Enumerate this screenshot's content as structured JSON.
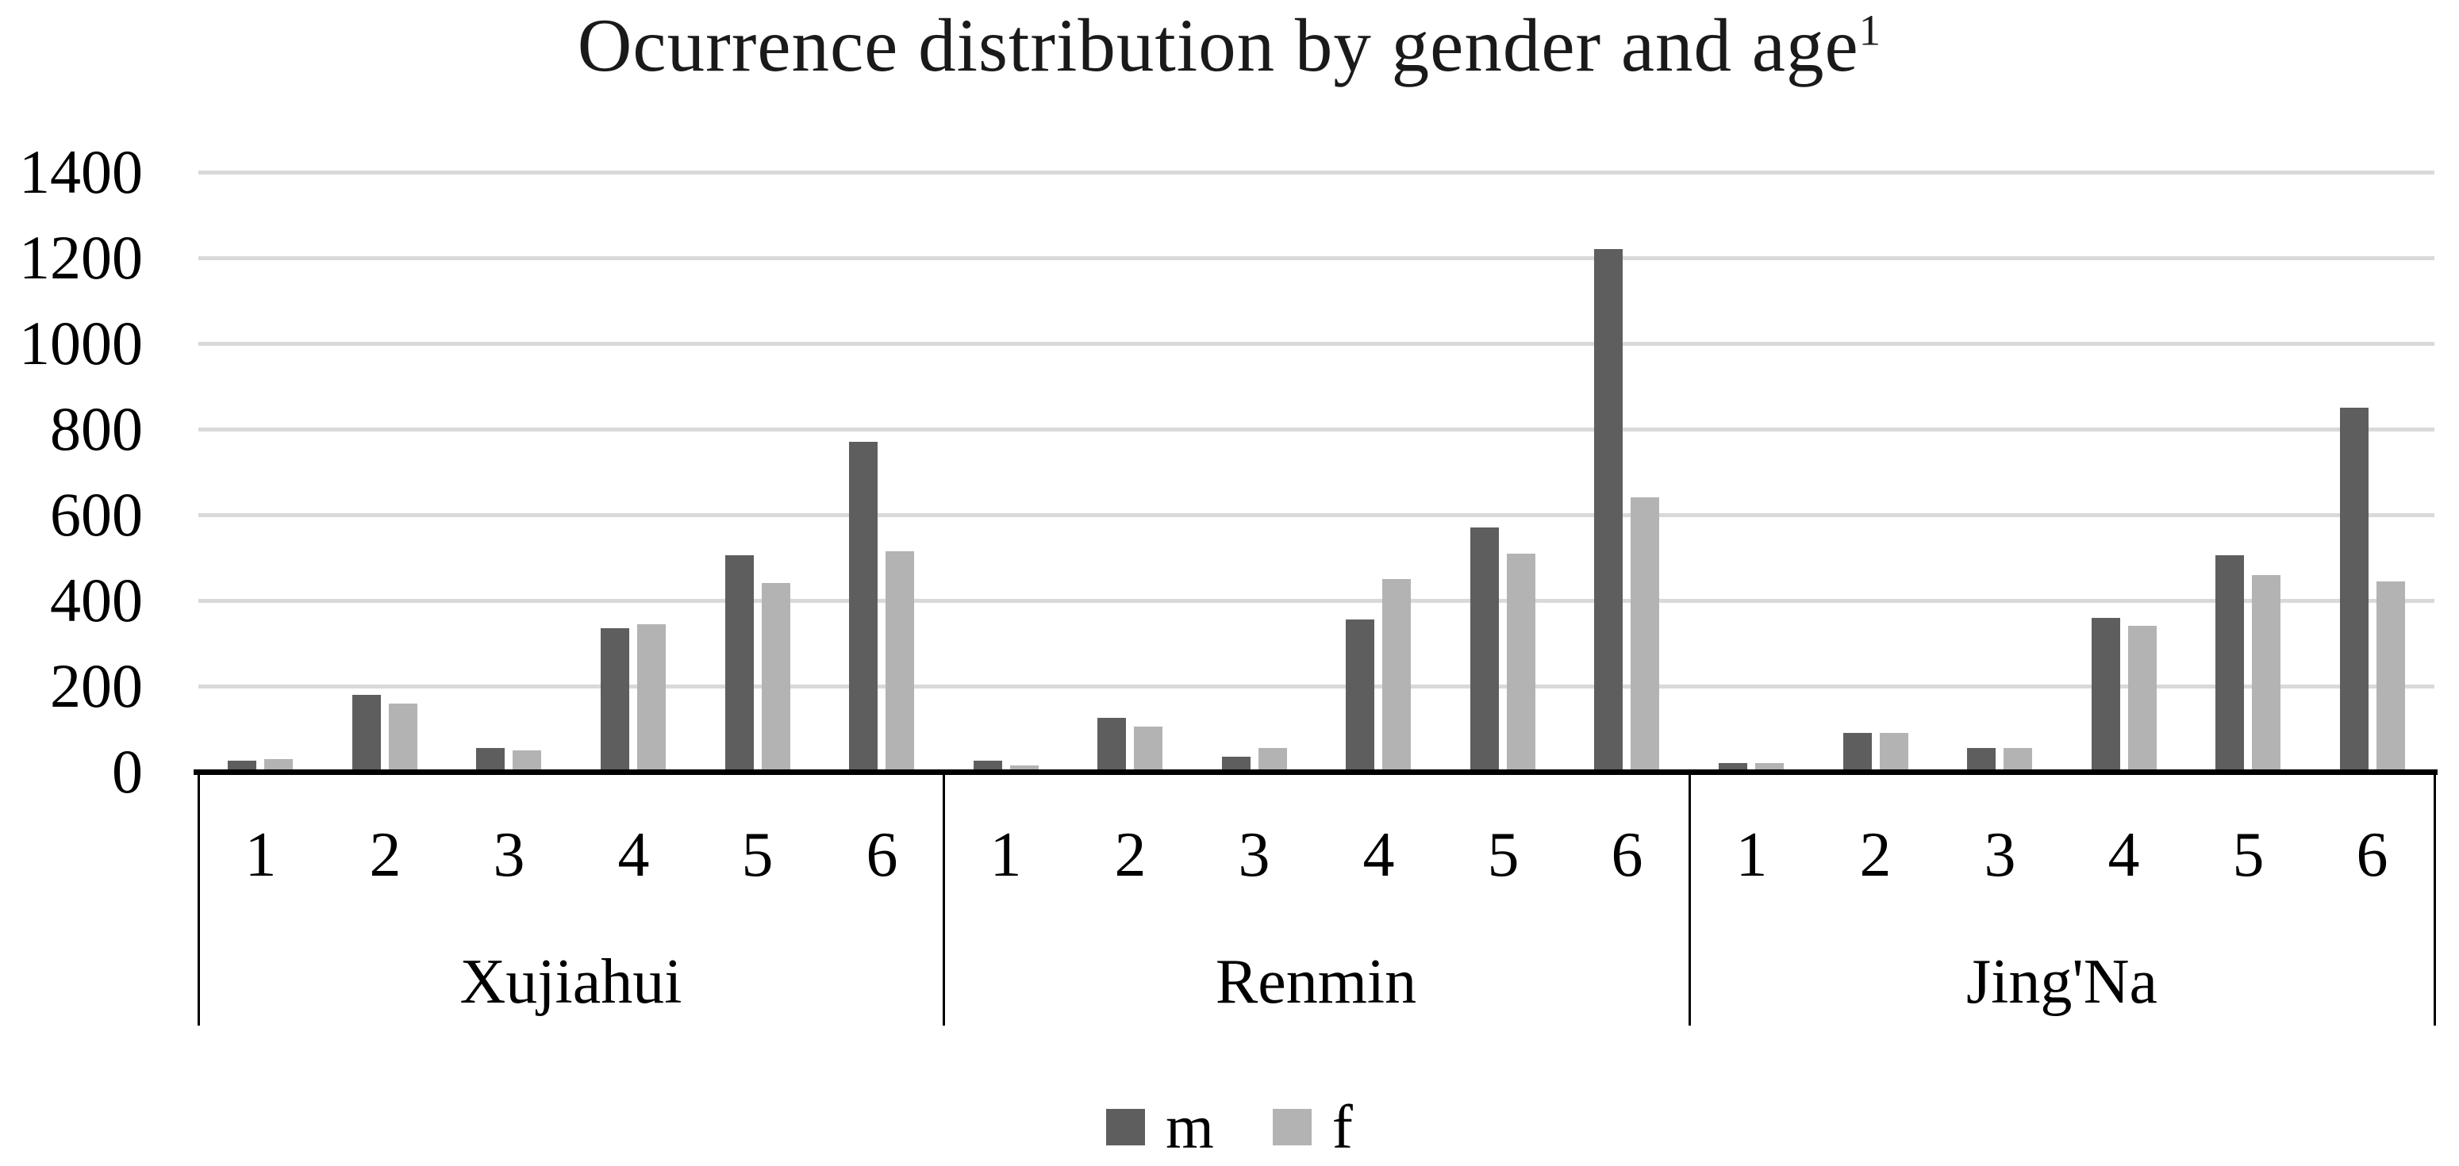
{
  "chart_data": {
    "type": "bar",
    "title": "Ocurrence distribution by gender and age",
    "title_superscript": "1",
    "xlabel": "",
    "ylabel": "",
    "ylim": [
      0,
      1400
    ],
    "yticks": [
      0,
      200,
      400,
      600,
      800,
      1000,
      1200,
      1400
    ],
    "grid": true,
    "legend_position": "bottom",
    "categories": [
      "1",
      "2",
      "3",
      "4",
      "5",
      "6"
    ],
    "groups": [
      {
        "label": "Xujiahui",
        "series": [
          {
            "name": "m",
            "values": [
              25,
              180,
              55,
              335,
              505,
              770
            ]
          },
          {
            "name": "f",
            "values": [
              30,
              160,
              50,
              345,
              440,
              515
            ]
          }
        ]
      },
      {
        "label": "Renmin",
        "series": [
          {
            "name": "m",
            "values": [
              25,
              125,
              35,
              355,
              570,
              1220
            ]
          },
          {
            "name": "f",
            "values": [
              15,
              105,
              55,
              450,
              510,
              640
            ]
          }
        ]
      },
      {
        "label": "Jing'Na",
        "series": [
          {
            "name": "m",
            "values": [
              20,
              90,
              55,
              360,
              505,
              850
            ]
          },
          {
            "name": "f",
            "values": [
              20,
              90,
              55,
              340,
              460,
              445
            ]
          }
        ]
      }
    ],
    "legend": [
      {
        "label": "m",
        "color": "#5e5e5e"
      },
      {
        "label": "f",
        "color": "#b3b3b3"
      }
    ],
    "colors": {
      "series_m": "#5e5e5e",
      "series_f": "#b3b3b3",
      "gridline": "#d9d9d9",
      "axis_line": "#000000",
      "text": "#1a1a1a"
    }
  }
}
